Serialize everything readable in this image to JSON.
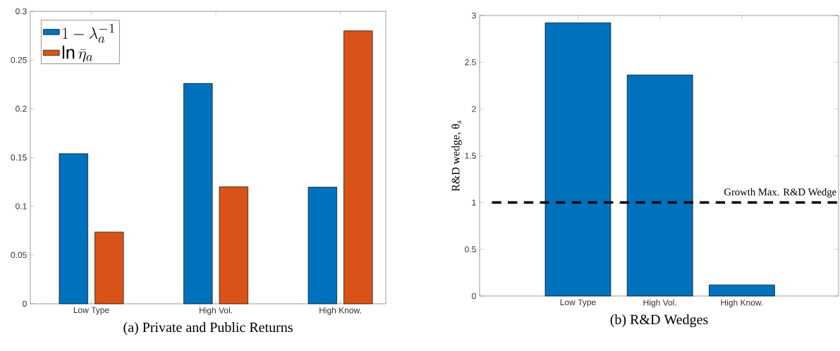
{
  "chart_data": [
    {
      "type": "bar",
      "title": "(a) Private and Public Returns",
      "categories": [
        "Low Type",
        "High Vol.",
        "High Know."
      ],
      "series": [
        {
          "name": "1-\\lambda_a^{-1}",
          "color": "#0072bd",
          "values": [
            0.154,
            0.226,
            0.1196
          ]
        },
        {
          "name": "\\ln\\bar{\\eta}_a",
          "color": "#d95319",
          "values": [
            0.0736,
            0.12,
            0.28
          ]
        }
      ],
      "ylim": [
        0,
        0.3
      ],
      "yticks": [
        0,
        0.05,
        0.1,
        0.15,
        0.2,
        0.25,
        0.3
      ],
      "legend": "top left"
    },
    {
      "type": "bar",
      "title": "(b) R&D Wedges",
      "ylabel": "R&D wedge, θ$_{a}$",
      "categories": [
        "Low Type",
        "High Vol.",
        "High Know."
      ],
      "values": [
        2.922,
        2.364,
        0.119
      ],
      "color": "#0072bd",
      "ylim": [
        0,
        3
      ],
      "yticks": [
        0,
        0.5,
        1,
        1.5,
        2,
        2.5,
        3
      ],
      "ref_lines": [
        {
          "axis": "y",
          "value": 1,
          "label": "Growth Max. R&D Wedge",
          "color": "#000000",
          "line_style": "dashed"
        }
      ]
    }
  ]
}
